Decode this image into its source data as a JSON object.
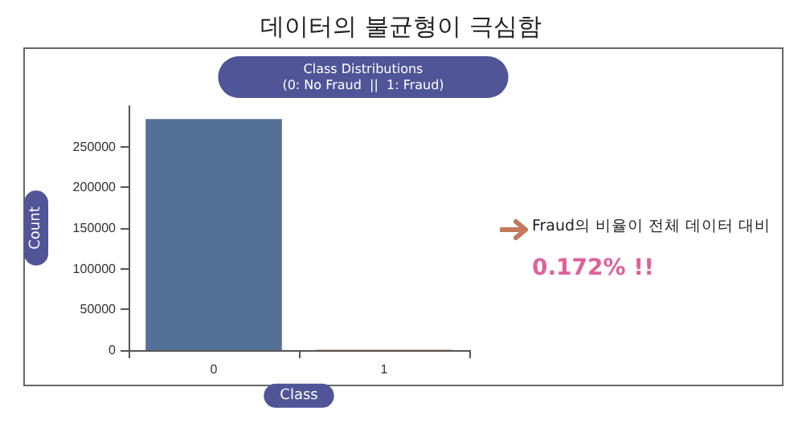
{
  "chart_data": {
    "type": "bar",
    "title": "데이터의 불균형이 극심함",
    "subtitle": "Class Distributions\n(0: No Fraud  ||  1: Fraud)",
    "xlabel": "Class",
    "ylabel": "Count",
    "categories": [
      "0",
      "1"
    ],
    "values": [
      284000,
      500
    ],
    "colors": [
      "#557096",
      "#c0733f"
    ],
    "ylim": [
      0,
      300000
    ],
    "yticks": [
      0,
      50000,
      100000,
      150000,
      200000,
      250000
    ],
    "grid": false,
    "annotations": [
      "Fraud의 비율이 전체 데이터 대비",
      "0.172% !!"
    ]
  }
}
